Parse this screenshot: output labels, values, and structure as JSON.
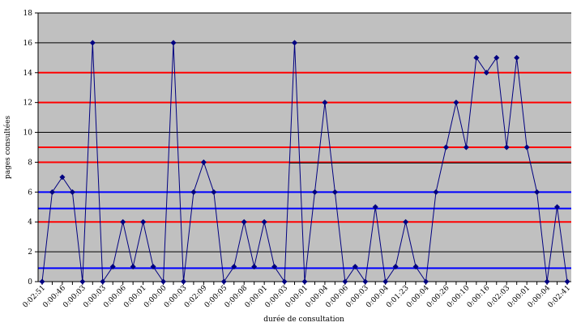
{
  "chart_data": {
    "type": "line",
    "xlabel": "durée de consultation",
    "ylabel": "pages consultées",
    "ylim": [
      0,
      18
    ],
    "yticks": [
      0,
      2,
      4,
      6,
      8,
      10,
      12,
      14,
      16,
      18
    ],
    "grid": true,
    "legend": "none",
    "colors": {
      "plot_background": "#c0c0c0",
      "series": "#000080",
      "gridline": "#000000",
      "red_lines": "#ff0000",
      "blue_lines": "#0000ff"
    },
    "x_tick_labels": [
      "0:02:51",
      "0:00:46",
      "0:00:03",
      "0:00:03",
      "0:00:06",
      "0:00:01",
      "0:00:00",
      "0:00:03",
      "0:02:09",
      "0:00:05",
      "0:00:08",
      "0:00:01",
      "0:00:03",
      "0:00:01",
      "0:00:04",
      "0:00:06",
      "0:00:03",
      "0:00:04",
      "0:01:23",
      "0:00:04",
      "0:00:26",
      "0:00:10",
      "0:00:16",
      "0:02:03",
      "0:00:01",
      "0:00:04",
      "0:02:41"
    ],
    "series": [
      {
        "values": [
          0,
          6,
          7,
          6,
          0,
          16,
          0,
          1,
          4,
          1,
          4,
          1,
          0,
          16,
          0,
          6,
          8,
          6,
          0,
          1,
          4,
          1,
          4,
          1,
          0,
          16,
          0,
          6,
          12,
          6,
          0,
          1,
          0,
          5,
          0,
          1,
          4,
          1,
          0,
          6,
          9,
          12,
          9,
          15,
          14,
          15,
          9,
          15,
          9,
          6,
          0,
          5,
          0
        ]
      }
    ],
    "reference_lines": [
      {
        "y": 14,
        "color": "#ff0000"
      },
      {
        "y": 12,
        "color": "#ff0000"
      },
      {
        "y": 9,
        "color": "#ff0000"
      },
      {
        "y": 8,
        "color": "#ff0000"
      },
      {
        "y": 4,
        "color": "#ff0000"
      },
      {
        "y": 6,
        "color": "#0000ff"
      },
      {
        "y": 4.9,
        "color": "#0000ff"
      },
      {
        "y": 0.9,
        "color": "#0000ff"
      }
    ],
    "partial_reference_line": {
      "y": 7.95,
      "x_from": 25,
      "color": "#000000"
    }
  }
}
